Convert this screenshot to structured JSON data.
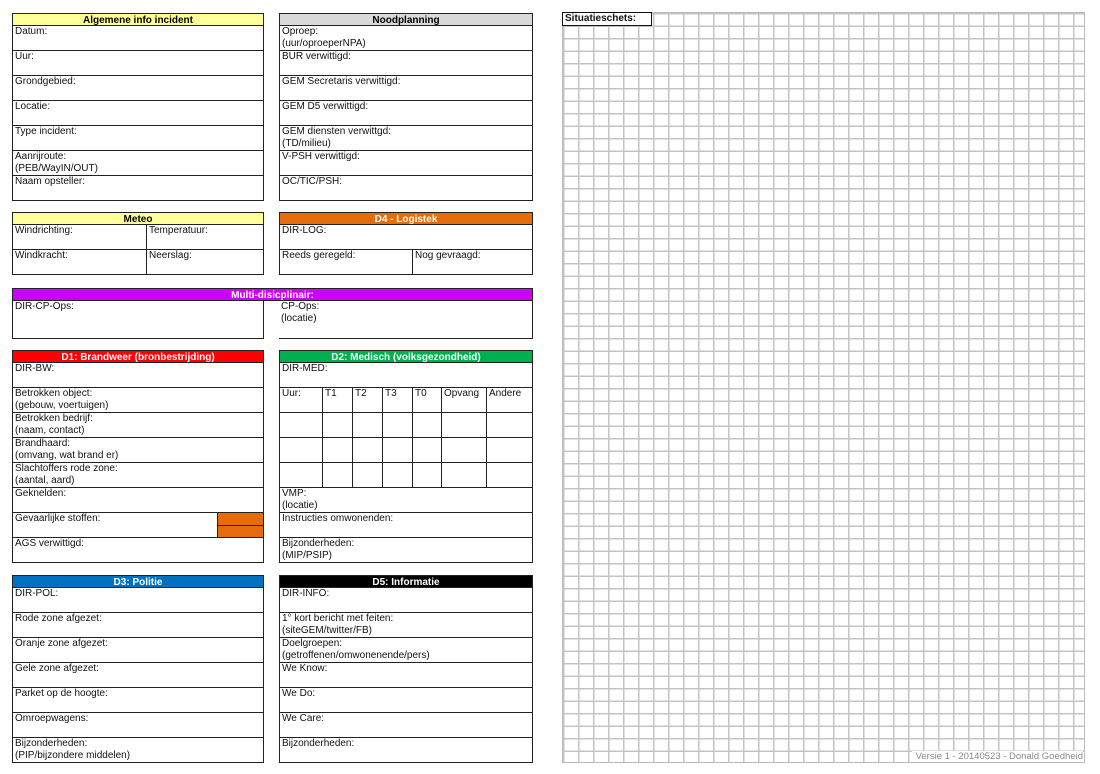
{
  "colors": {
    "yellow": "#ffff99",
    "grey": "#d9d9d9",
    "orange": "#e46c0a",
    "purple": "#cc00ff",
    "red": "#ff0000",
    "green": "#00b050",
    "blue": "#0070c0",
    "black": "#000000"
  },
  "sections": {
    "algemene": {
      "title": "Algemene info incident",
      "color": "#ffff99",
      "text_color": "#000",
      "rows": [
        [
          "Datum:"
        ],
        [
          "Uur:"
        ],
        [
          "Grondgebied:"
        ],
        [
          "Locatie:"
        ],
        [
          "Type incident:"
        ],
        [
          "Aanrijroute:\n(PEB/WayIN/OUT)"
        ],
        [
          "Naam opsteller:"
        ]
      ]
    },
    "noodplanning": {
      "title": "Noodplanning",
      "color": "#d9d9d9",
      "text_color": "#000",
      "rows": [
        [
          "Oproep:\n(uur/oproeperNPA)"
        ],
        [
          "BUR verwittigd:"
        ],
        [
          "GEM Secretaris verwittigd:"
        ],
        [
          "GEM D5 verwittigd:"
        ],
        [
          "GEM diensten verwittgd:\n(TD/milieu)"
        ],
        [
          "V-PSH verwittigd:"
        ],
        [
          "OC/TIC/PSH:"
        ]
      ]
    },
    "meteo": {
      "title": "Meteo",
      "color": "#ffff99",
      "text_color": "#000",
      "rows": [
        [
          "Windrichting:",
          "Temperatuur:"
        ],
        [
          "Windkracht:",
          "Neerslag:"
        ]
      ]
    },
    "d4": {
      "title": "D4 - Logistek",
      "color": "#e46c0a",
      "text_color": "#fff",
      "rows": [
        [
          "DIR-LOG:"
        ],
        [
          "Reeds geregeld:",
          "Nog gevraagd:"
        ]
      ]
    },
    "multi": {
      "title": "Multi-disicplinair:",
      "color": "#cc00ff",
      "text_color": "#fff",
      "rows": [
        [
          "DIR-CP-Ops:",
          "",
          "CP-Ops:\n(locatie)"
        ]
      ]
    },
    "d1": {
      "title": "D1: Brandweer (bronbestrijding)",
      "color": "#ff0000",
      "text_color": "#fff",
      "rows": [
        [
          "DIR-BW:"
        ],
        [
          "Betrokken object:\n(gebouw, voertuigen)"
        ],
        [
          "Betrokken bedrijf:\n(naam, contact)"
        ],
        [
          "Brandhaard:\n(omvang, wat brand er)"
        ],
        [
          "Slachtoffers rode zone:\n(aantal, aard)"
        ],
        [
          "Geknelden:"
        ],
        [
          "Gevaarlijke stoffen:",
          ""
        ],
        [
          "AGS verwittigd:"
        ]
      ]
    },
    "d2": {
      "title": "D2: Medisch (volksgezondheid)",
      "color": "#00b050",
      "text_color": "#fff",
      "rows": [
        [
          "DIR-MED:"
        ],
        [
          "Uur:",
          "T1",
          "T2",
          "T3",
          "T0",
          "Opvang",
          "Andere"
        ],
        [
          "",
          "",
          "",
          "",
          "",
          "",
          ""
        ],
        [
          "",
          "",
          "",
          "",
          "",
          "",
          ""
        ],
        [
          "",
          "",
          "",
          "",
          "",
          "",
          ""
        ],
        [
          "VMP:\n(locatie)"
        ],
        [
          "Instructies omwonenden:"
        ],
        [
          "Bijzonderheden:\n(MIP/PSIP)"
        ]
      ]
    },
    "d3": {
      "title": "D3: Politie",
      "color": "#0070c0",
      "text_color": "#fff",
      "rows": [
        [
          "DIR-POL:"
        ],
        [
          "Rode zone afgezet:"
        ],
        [
          "Oranje zone afgezet:"
        ],
        [
          "Gele zone afgezet:"
        ],
        [
          "Parket op de hoogte:"
        ],
        [
          "Omroepwagens:"
        ],
        [
          "Bijzonderheden:\n(PIP/bijzondere middelen)"
        ]
      ]
    },
    "d5": {
      "title": "D5: Informatie",
      "color": "#000000",
      "text_color": "#fff",
      "rows": [
        [
          "DIR-INFO:"
        ],
        [
          "1° kort bericht met feiten:\n(siteGEM/twitter/FB)"
        ],
        [
          "Doelgroepen:\n(getroffenen/omwonenende/pers)"
        ],
        [
          "We Know:"
        ],
        [
          "We Do:"
        ],
        [
          "We Care:"
        ],
        [
          "Bijzonderheden:"
        ]
      ]
    }
  },
  "sketch": {
    "label": "Situatieschets:",
    "version": "Versie 1 - 20140523 - Donald Goedheid"
  }
}
